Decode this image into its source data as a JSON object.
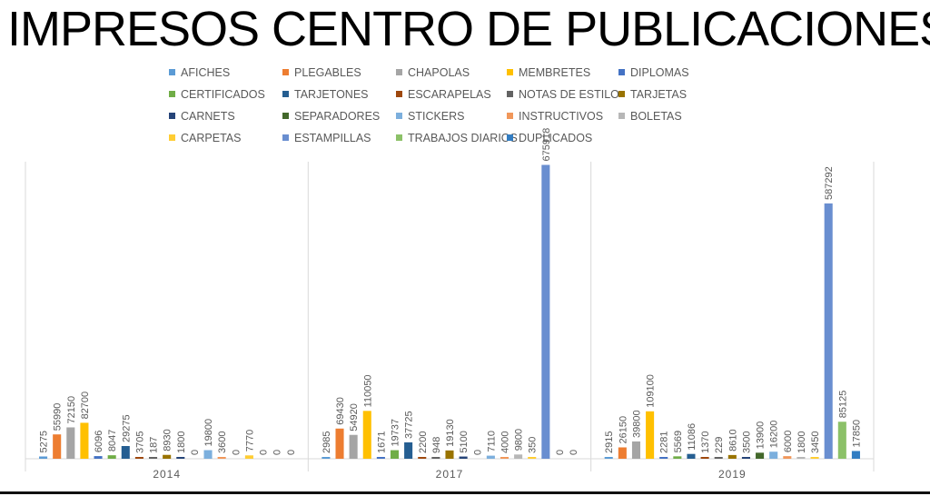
{
  "title": "IMPRESOS CENTRO DE PUBLICACIONES",
  "chart_data": {
    "type": "bar",
    "categories": [
      "2014",
      "2017",
      "2019"
    ],
    "ylim": [
      0,
      700000
    ],
    "grid": false,
    "legend_position": "top",
    "series": [
      {
        "name": "AFICHES",
        "color": "#5B9BD5",
        "values": [
          5275,
          2985,
          2915
        ]
      },
      {
        "name": "PLEGABLES",
        "color": "#ED7D31",
        "values": [
          55990,
          69430,
          26150
        ]
      },
      {
        "name": "CHAPOLAS",
        "color": "#A5A5A5",
        "values": [
          72150,
          54920,
          39800
        ]
      },
      {
        "name": "MEMBRETES",
        "color": "#FFC000",
        "values": [
          82700,
          110050,
          109100
        ]
      },
      {
        "name": "DIPLOMAS",
        "color": "#4472C4",
        "values": [
          6096,
          1671,
          2281
        ]
      },
      {
        "name": "CERTIFICADOS",
        "color": "#70AD47",
        "values": [
          8047,
          19737,
          5569
        ]
      },
      {
        "name": "TARJETONES",
        "color": "#255E91",
        "values": [
          29275,
          37725,
          11086
        ]
      },
      {
        "name": "ESCARAPELAS",
        "color": "#9E480E",
        "values": [
          3705,
          2200,
          1370
        ]
      },
      {
        "name": "NOTAS DE ESTILO",
        "color": "#636363",
        "values": [
          187,
          948,
          229
        ]
      },
      {
        "name": "TARJETAS",
        "color": "#997300",
        "values": [
          8930,
          19130,
          8610
        ]
      },
      {
        "name": "CARNETS",
        "color": "#264478",
        "values": [
          1800,
          5100,
          3500
        ]
      },
      {
        "name": "SEPARADORES",
        "color": "#43682B",
        "values": [
          0,
          0,
          13900
        ]
      },
      {
        "name": "STICKERS",
        "color": "#7CAFDD",
        "values": [
          19800,
          7110,
          16200
        ]
      },
      {
        "name": "INSTRUCTIVOS",
        "color": "#F1975A",
        "values": [
          3600,
          4000,
          6000
        ]
      },
      {
        "name": "BOLETAS",
        "color": "#B7B7B7",
        "values": [
          0,
          9800,
          1800
        ]
      },
      {
        "name": "CARPETAS",
        "color": "#FFCD33",
        "values": [
          7770,
          350,
          3450
        ]
      },
      {
        "name": "ESTAMPILLAS",
        "color": "#698ED0",
        "values": [
          0,
          675918,
          587292
        ]
      },
      {
        "name": "TRABAJOS DIARIOS",
        "color": "#8CC168",
        "values": [
          0,
          0,
          85125
        ]
      },
      {
        "name": "DUPLICADOS",
        "color": "#327DC2",
        "values": [
          0,
          0,
          17850
        ]
      }
    ]
  }
}
